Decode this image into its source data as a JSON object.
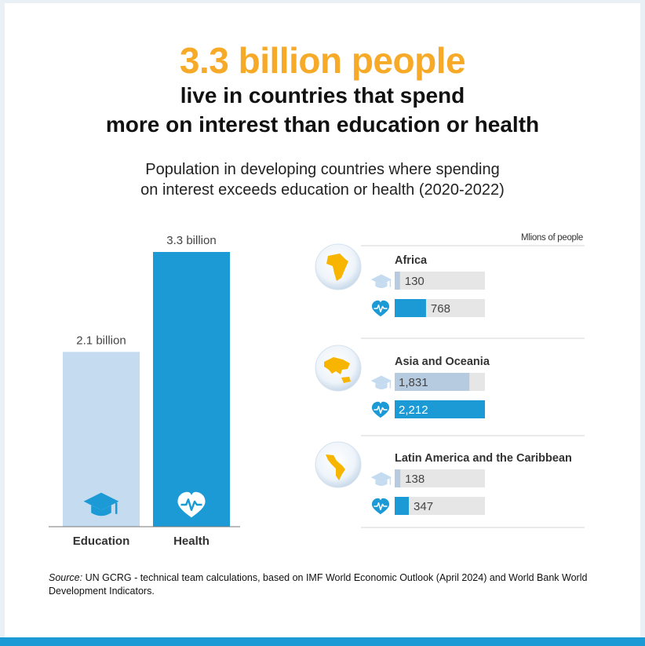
{
  "headline": "3.3 billion people",
  "subheadline_line1": "live in countries that spend",
  "subheadline_line2": "more on interest than education or health",
  "description_line1": "Population in developing countries where spending",
  "description_line2": "on interest exceeds education or health (2020-2022)",
  "source_label": "Source:",
  "source_text": "UN GCRG - technical team calculations, based on IMF World Economic Outlook (April 2024) and World Bank World Development Indicators.",
  "colors": {
    "headline": "#f7a928",
    "health": "#1b9ad6",
    "education": "#c5dcf0",
    "education_small": "#b7cbe0",
    "track": "#e6e6e6",
    "globe_continent": "#f7b500"
  },
  "chart_data": [
    {
      "type": "bar",
      "categories": [
        "Education",
        "Health"
      ],
      "values": [
        2.1,
        3.3
      ],
      "value_labels": [
        "2.1 billion",
        "3.3 billion"
      ],
      "icons": [
        "graduation-cap-icon",
        "heart-pulse-icon"
      ]
    },
    {
      "type": "bar",
      "orientation": "horizontal",
      "unit_label": "Mlions of people",
      "xlim": [
        0,
        2212
      ],
      "groups": [
        {
          "region": "Africa",
          "globe_icon": "globe-africa-icon",
          "education": {
            "value": 130,
            "label": "130"
          },
          "health": {
            "value": 768,
            "label": "768"
          }
        },
        {
          "region": "Asia and Oceania",
          "globe_icon": "globe-asia-oceania-icon",
          "education": {
            "value": 1831,
            "label": "1,831"
          },
          "health": {
            "value": 2212,
            "label": "2,212"
          }
        },
        {
          "region": "Latin America and the Caribbean",
          "globe_icon": "globe-latin-america-icon",
          "education": {
            "value": 138,
            "label": "138"
          },
          "health": {
            "value": 347,
            "label": "347"
          }
        }
      ]
    }
  ]
}
